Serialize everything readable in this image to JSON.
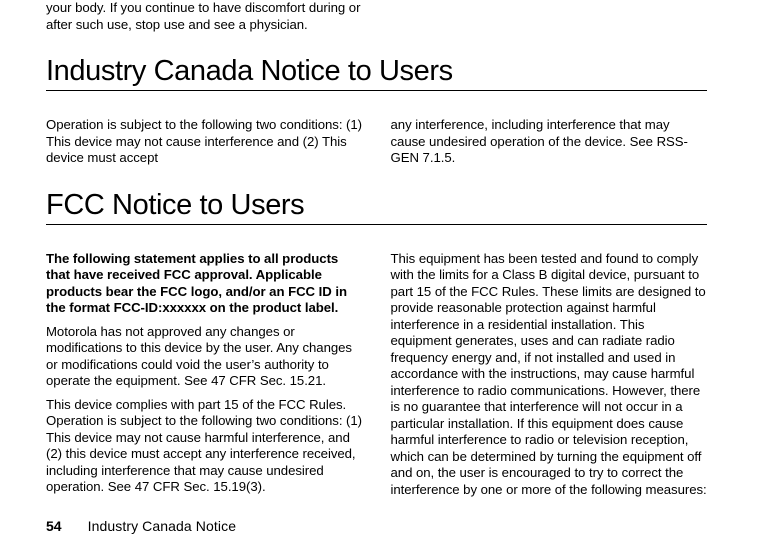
{
  "document": {
    "page_number": "54",
    "footer_section": "Industry Canada Notice",
    "colors": {
      "text": "#000000",
      "background": "#ffffff",
      "rule": "#000000"
    },
    "fonts": {
      "body_size_pt": 10,
      "heading_size_pt": 22,
      "heading_weight": 300,
      "body_weight": 400,
      "bold_weight": 700
    },
    "top_fragment": {
      "left": "your body. If you continue to have discomfort during or after such use, stop use and see a physician.",
      "right": ""
    },
    "sections": [
      {
        "heading": "Industry Canada Notice to Users",
        "left_paras": [
          "Operation is subject to the following two conditions: (1) This device may not cause interference and (2) This device must accept"
        ],
        "right_paras": [
          "any interference, including interference that may cause undesired operation of the device. See RSS-GEN 7.1.5."
        ]
      },
      {
        "heading": "FCC Notice to Users",
        "left_bold_para": "The following statement applies to all products that have received FCC approval. Applicable products bear the FCC logo, and/or an FCC ID in the format FCC-ID:xxxxxx on the product label.",
        "left_paras": [
          "Motorola has not approved any changes or modifications to this device by the user. Any changes or modifications could void the user’s authority to operate the equipment. See 47 CFR Sec. 15.21.",
          "This device complies with part 15 of the FCC Rules. Operation is subject to the following two conditions: (1) This device may not cause harmful interference, and (2) this device must accept any interference received, including interference that may cause undesired operation. See 47 CFR Sec. 15.19(3)."
        ],
        "right_paras": [
          "This equipment has been tested and found to comply with the limits for a Class B digital device, pursuant to part 15 of the FCC Rules. These limits are designed to provide reasonable protection against harmful interference in a residential installation. This equipment generates, uses and can radiate radio frequency energy and, if not installed and used in accordance with the instructions, may cause harmful interference to radio communications. However, there is no guarantee that interference will not occur in a particular installation. If this equipment does cause harmful interference to radio or television reception, which can be determined by turning the equipment off and on, the user is encouraged to try to correct the interference by one or more of the following measures:"
        ]
      }
    ]
  }
}
